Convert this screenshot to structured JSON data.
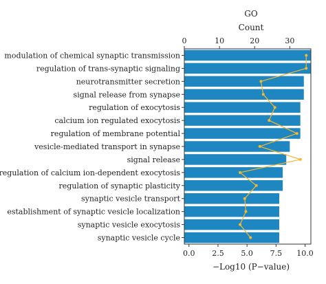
{
  "chart_data": {
    "type": "bar",
    "orientation": "horizontal",
    "title": "GO",
    "top_axis_label": "Count",
    "bottom_axis_label": "−Log10 (P−value)",
    "top_axis_range": [
      0,
      36
    ],
    "top_ticks": [
      "0",
      "10",
      "20",
      "30"
    ],
    "top_tick_values": [
      0,
      10,
      20,
      30
    ],
    "bottom_axis_range": [
      -0.4,
      10.5
    ],
    "bottom_ticks": [
      "0.0",
      "2.5",
      "5.0",
      "7.5",
      "10.0"
    ],
    "bottom_tick_values": [
      0,
      2.5,
      5,
      7.5,
      10
    ],
    "categories": [
      "modulation of chemical synaptic transmission",
      "regulation of trans-synaptic signaling",
      "neurotransmitter secretion",
      "signal release from synapse",
      "regulation of exocytosis",
      "calcium ion regulated exocytosis",
      "regulation of membrane potential",
      "vesicle-mediated transport in synapse",
      "signal release",
      "regulation of calcium ion-dependent exocytosis",
      "regulation of synaptic plasticity",
      "synaptic vesicle transport",
      "establishment of synaptic vesicle localization",
      "synaptic vesicle exocytosis",
      "synaptic vesicle cycle"
    ],
    "count_values": [
      36,
      36,
      34,
      34,
      33,
      33,
      33,
      30,
      29,
      28,
      28,
      27,
      27,
      27,
      27
    ],
    "pvalue_values": [
      10.1,
      10.1,
      6.2,
      6.4,
      7.4,
      6.9,
      9.3,
      6.1,
      9.6,
      4.4,
      5.8,
      4.8,
      4.9,
      4.4,
      5.3
    ],
    "colors": {
      "bar": "#1e86c0",
      "line": "#f5b82e",
      "axis": "#333333"
    },
    "grid": false
  }
}
